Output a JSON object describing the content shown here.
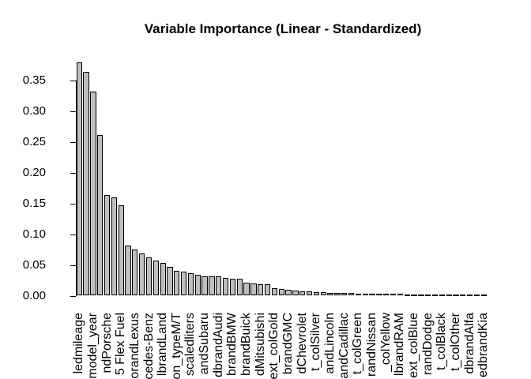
{
  "title": "Variable Importance (Linear - Standardized)",
  "chart_data": {
    "type": "bar",
    "title": "Variable Importance (Linear - Standardized)",
    "xlabel": "",
    "ylabel": "",
    "ylim": [
      0,
      0.38
    ],
    "grid": false,
    "legend": false,
    "bar_fill": "#bebebe",
    "bar_border": "#000000",
    "ytick_values": [
      0.0,
      0.05,
      0.1,
      0.15,
      0.2,
      0.25,
      0.3,
      0.35
    ],
    "ytick_labels": [
      "0.00",
      "0.05",
      "0.10",
      "0.15",
      "0.20",
      "0.25",
      "0.30",
      "0.35"
    ],
    "values": [
      0.38,
      0.364,
      0.332,
      0.262,
      0.164,
      0.16,
      0.147,
      0.082,
      0.075,
      0.069,
      0.062,
      0.057,
      0.053,
      0.047,
      0.04,
      0.039,
      0.037,
      0.034,
      0.032,
      0.031,
      0.031,
      0.029,
      0.028,
      0.028,
      0.021,
      0.02,
      0.019,
      0.019,
      0.012,
      0.0105,
      0.0095,
      0.008,
      0.007,
      0.0065,
      0.006,
      0.0055,
      0.005,
      0.0046,
      0.0042,
      0.004,
      0.0038,
      0.0036,
      0.0034,
      0.0032,
      0.003,
      0.0028,
      0.0026,
      0.0024,
      0.0022,
      0.002,
      0.0017,
      0.0014,
      0.0012,
      0.001,
      0.0008,
      0.0007,
      0.0006,
      0.0005,
      0.0004
    ],
    "xtick_label_step": 2,
    "xtick_labels": [
      "ledmileage",
      "model_year",
      "ndPorsche",
      "5 Flex Fuel",
      "orandLexus",
      "cedes-Benz",
      "lbrandLand",
      "on_typeM/T",
      "scaledliters",
      "andSubaru",
      "dbrandAudi",
      "brandBMW",
      "brandBuick",
      "dMitsubishi",
      "ext_colGold",
      "brandGMC",
      "dChevrolet",
      "t_colSilver",
      "andLincoln",
      "andCadillac",
      "t_colGreen",
      "randNissan",
      "_colYellow",
      "lbrandRAM",
      "ext_colBlue",
      "randDodge",
      "t_colBlack",
      "t_colOther",
      "dbrandAlfa",
      "edbrandKia"
    ]
  }
}
